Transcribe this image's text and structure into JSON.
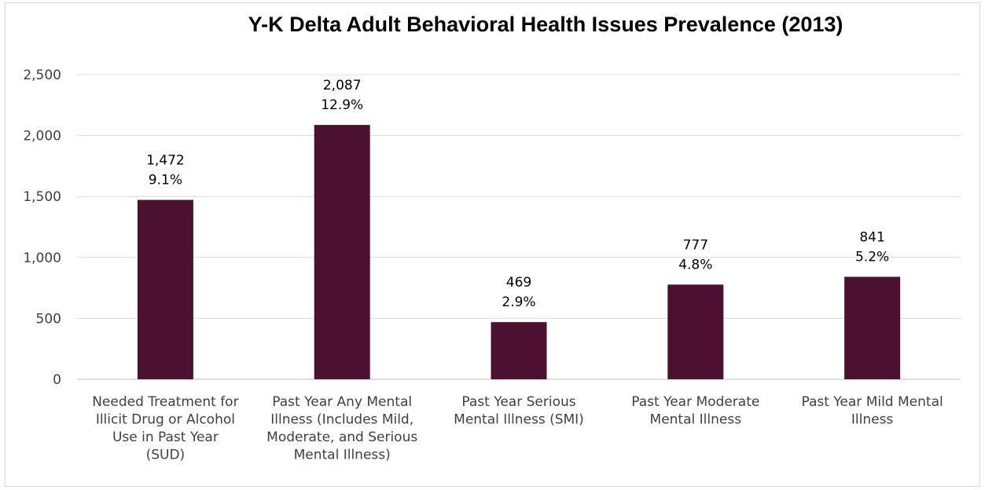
{
  "chart_data": {
    "type": "bar",
    "title": "Y-K Delta Adult Behavioral Health Issues Prevalence (2013)",
    "xlabel": "",
    "ylabel": "",
    "ylim": [
      0,
      2500
    ],
    "yticks": [
      "0",
      "500",
      "1,000",
      "1,500",
      "2,000",
      "2,500"
    ],
    "grid": true,
    "bar_color": "#4c1130",
    "categories": [
      [
        "Needed Treatment for",
        "Illicit Drug or Alcohol",
        "Use in Past Year",
        "(SUD)"
      ],
      [
        "Past Year Any  Mental",
        "Illness (Includes Mild,",
        "Moderate, and Serious",
        "Mental Illness)"
      ],
      [
        "Past Year Serious",
        "Mental Illness (SMI)"
      ],
      [
        "Past Year Moderate",
        "Mental Illness"
      ],
      [
        "Past Year Mild Mental",
        "Illness"
      ]
    ],
    "values": [
      1472,
      2087,
      469,
      777,
      841
    ],
    "value_labels": [
      "1,472",
      "2,087",
      "469",
      "777",
      "841"
    ],
    "percent_labels": [
      "9.1%",
      "12.9%",
      "2.9%",
      "4.8%",
      "5.2%"
    ]
  }
}
